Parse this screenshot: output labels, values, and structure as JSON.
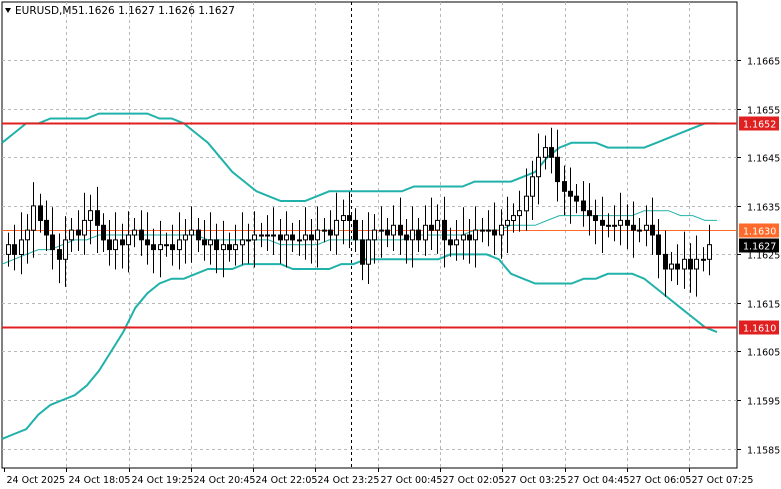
{
  "header": {
    "symbol_label": "EURUSD,M5",
    "ohlc_label": "1.1626 1.1627 1.1626 1.1627"
  },
  "chart_data": {
    "type": "candlestick",
    "symbol": "EURUSD",
    "timeframe": "M5",
    "ylim": [
      1.1581,
      1.1677
    ],
    "y_ticks": [
      "1.1665",
      "1.1655",
      "1.1645",
      "1.1635",
      "1.1625",
      "1.1615",
      "1.1605",
      "1.1595",
      "1.1585"
    ],
    "x_ticks": [
      "24 Oct 2025",
      "24 Oct 18:05",
      "24 Oct 19:25",
      "24 Oct 20:45",
      "24 Oct 22:05",
      "24 Oct 23:25",
      "27 Oct 00:45",
      "27 Oct 02:05",
      "27 Oct 03:25",
      "27 Oct 04:45",
      "27 Oct 06:05",
      "27 Oct 07:25"
    ],
    "grid": true,
    "period_separator": "27 Oct 00:00",
    "levels": [
      {
        "label": "1.1652",
        "value": 1.1652,
        "color": "#e02020"
      },
      {
        "label": "1.1630",
        "value": 1.163,
        "color": "#ff6a2a"
      },
      {
        "label": "1.1610",
        "value": 1.161,
        "color": "#e02020"
      }
    ],
    "current_price": {
      "label": "1.1627",
      "value": 1.1627
    },
    "bands": {
      "upper": [
        1.1648,
        1.165,
        1.1652,
        1.1652,
        1.1653,
        1.1653,
        1.1653,
        1.1653,
        1.1654,
        1.1654,
        1.1654,
        1.1654,
        1.1654,
        1.1653,
        1.1653,
        1.1652,
        1.165,
        1.1648,
        1.1645,
        1.1642,
        1.164,
        1.1638,
        1.1637,
        1.1636,
        1.1636,
        1.1636,
        1.1637,
        1.1638,
        1.1638,
        1.1638,
        1.1638,
        1.1638,
        1.1638,
        1.1638,
        1.1639,
        1.1639,
        1.1639,
        1.1639,
        1.1639,
        1.164,
        1.164,
        1.164,
        1.164,
        1.1641,
        1.1642,
        1.1645,
        1.1647,
        1.1648,
        1.1648,
        1.1648,
        1.1647,
        1.1647,
        1.1647,
        1.1647,
        1.1648,
        1.1649,
        1.165,
        1.1651,
        1.1652,
        1.1652
      ],
      "middle": [
        1.1623,
        1.1624,
        1.1625,
        1.1626,
        1.1626,
        1.1627,
        1.1628,
        1.1628,
        1.1629,
        1.1629,
        1.1629,
        1.1629,
        1.1629,
        1.1629,
        1.1629,
        1.1629,
        1.1629,
        1.1628,
        1.1628,
        1.1628,
        1.1628,
        1.1628,
        1.1628,
        1.1627,
        1.1627,
        1.1627,
        1.1627,
        1.1628,
        1.1628,
        1.1628,
        1.1628,
        1.1628,
        1.1628,
        1.1628,
        1.1629,
        1.1629,
        1.1629,
        1.1629,
        1.1629,
        1.163,
        1.163,
        1.163,
        1.1631,
        1.1631,
        1.1631,
        1.1632,
        1.1633,
        1.1633,
        1.1633,
        1.1633,
        1.1633,
        1.1633,
        1.1633,
        1.1634,
        1.1634,
        1.1634,
        1.1633,
        1.1633,
        1.1632,
        1.1632
      ],
      "lower": [
        1.1587,
        1.1588,
        1.1589,
        1.1592,
        1.1594,
        1.1595,
        1.1596,
        1.1598,
        1.1601,
        1.1605,
        1.1609,
        1.1614,
        1.1617,
        1.1619,
        1.162,
        1.162,
        1.1621,
        1.1622,
        1.1622,
        1.1622,
        1.1623,
        1.1623,
        1.1623,
        1.1623,
        1.1622,
        1.1622,
        1.1622,
        1.1622,
        1.1623,
        1.1623,
        1.1624,
        1.1624,
        1.1624,
        1.1624,
        1.1624,
        1.1624,
        1.1624,
        1.1625,
        1.1625,
        1.1625,
        1.1625,
        1.1624,
        1.1621,
        1.162,
        1.1619,
        1.1619,
        1.1619,
        1.1619,
        1.162,
        1.162,
        1.1621,
        1.1621,
        1.1621,
        1.162,
        1.1618,
        1.1616,
        1.1614,
        1.1612,
        1.161,
        1.1609
      ]
    },
    "candles_close": [
      1.1627,
      1.1625,
      1.1628,
      1.163,
      1.1635,
      1.1632,
      1.1629,
      1.1626,
      1.1624,
      1.1628,
      1.163,
      1.1629,
      1.1632,
      1.1634,
      1.1631,
      1.1628,
      1.1626,
      1.1628,
      1.1627,
      1.1629,
      1.163,
      1.1628,
      1.1627,
      1.1626,
      1.1627,
      1.1627,
      1.1626,
      1.1628,
      1.1629,
      1.163,
      1.1628,
      1.1627,
      1.1628,
      1.1626,
      1.1627,
      1.1626,
      1.1627,
      1.1628,
      1.1628,
      1.1629,
      1.1629,
      1.1629,
      1.1629,
      1.1628,
      1.1629,
      1.1628,
      1.1628,
      1.1629,
      1.1628,
      1.163,
      1.163,
      1.1629,
      1.1632,
      1.1633,
      1.1632,
      1.1628,
      1.1623,
      1.1628,
      1.163,
      1.163,
      1.1629,
      1.1631,
      1.1629,
      1.1628,
      1.163,
      1.1628,
      1.1631,
      1.163,
      1.1632,
      1.1628,
      1.1627,
      1.1628,
      1.1629,
      1.1628,
      1.163,
      1.163,
      1.163,
      1.1629,
      1.1631,
      1.1632,
      1.1633,
      1.1634,
      1.1637,
      1.1641,
      1.1645,
      1.1647,
      1.1645,
      1.164,
      1.1638,
      1.1637,
      1.1636,
      1.1634,
      1.1633,
      1.1632,
      1.1631,
      1.1631,
      1.1631,
      1.1632,
      1.1631,
      1.163,
      1.163,
      1.1631,
      1.1629,
      1.1625,
      1.1622,
      1.1623,
      1.1622,
      1.1624,
      1.1622,
      1.1624,
      1.1624,
      1.1627
    ]
  }
}
